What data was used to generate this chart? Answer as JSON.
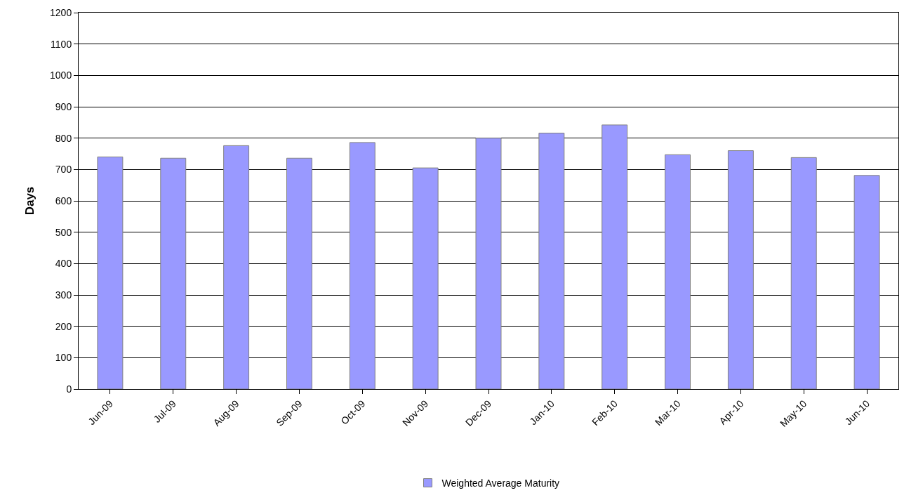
{
  "chart_data": {
    "type": "bar",
    "ylabel": "Days",
    "categories": [
      "Jun-09",
      "Jul-09",
      "Aug-09",
      "Sep-09",
      "Oct-09",
      "Nov-09",
      "Dec-09",
      "Jan-10",
      "Feb-10",
      "Mar-10",
      "Apr-10",
      "May-10",
      "Jun-10"
    ],
    "series": [
      {
        "name": "Weighted Average Maturity",
        "color": "#9999ff",
        "values": [
          740,
          736,
          776,
          736,
          786,
          705,
          800,
          816,
          842,
          747,
          760,
          738,
          681
        ]
      }
    ],
    "ylim": [
      0,
      1200
    ],
    "yticks": [
      0,
      100,
      200,
      300,
      400,
      500,
      600,
      700,
      800,
      900,
      1000,
      1100,
      1200
    ],
    "grid": "y",
    "legend": "bottom"
  }
}
